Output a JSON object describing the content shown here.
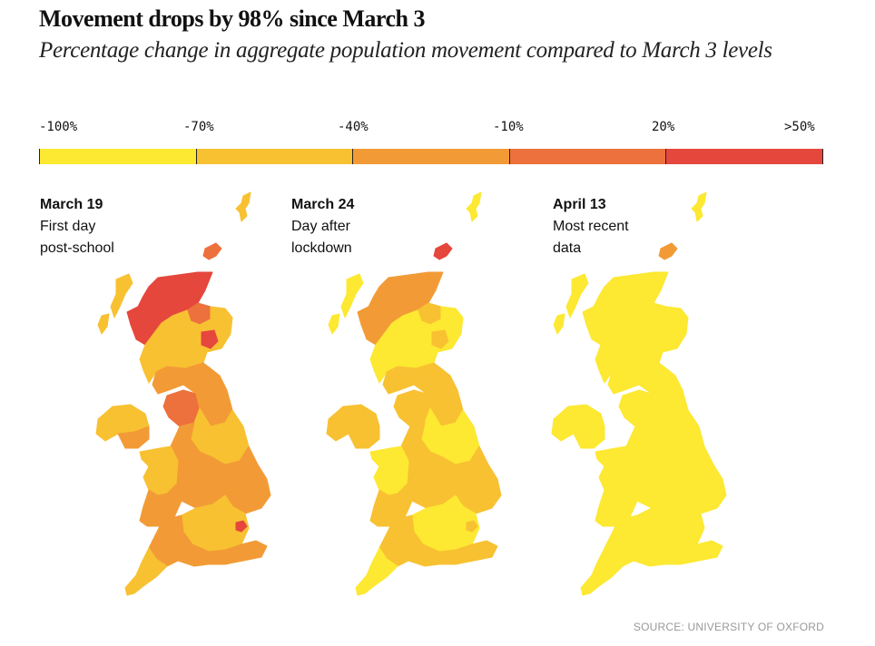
{
  "header": {
    "title": "Movement drops by 98% since March 3",
    "subtitle": "Percentage change in aggregate population movement compared to March 3 levels"
  },
  "legend": {
    "labels": [
      "-100%",
      "-70%",
      "-40%",
      "-10%",
      "20%",
      ">50%"
    ],
    "bins": [
      {
        "range": "-100% to -70%",
        "color": "#fde832"
      },
      {
        "range": "-70% to -40%",
        "color": "#f8c132"
      },
      {
        "range": "-40% to -10%",
        "color": "#f29b36"
      },
      {
        "range": "-10% to 20%",
        "color": "#ec713c"
      },
      {
        "range": "20% to >50%",
        "color": "#e5473d"
      }
    ]
  },
  "panels": [
    {
      "date": "March 19",
      "caption_line1": "First day",
      "caption_line2": "post-school",
      "regions": {
        "shetland": "#f8c132",
        "orkney": "#ec713c",
        "highlands": "#e5473d",
        "hebrides": "#f8c132",
        "ne_scotland": "#f8c132",
        "aberdeen": "#e5473d",
        "moray": "#ec713c",
        "central_scotland": "#f8c132",
        "s_scotland": "#f29b36",
        "n_ireland": "#f8c132",
        "n_ireland_south": "#f29b36",
        "n_england": "#f29b36",
        "cumbria": "#ec713c",
        "yorkshire": "#f8c132",
        "midlands": "#f29b36",
        "wales": "#f8c132",
        "s_wales": "#f29b36",
        "east_anglia": "#f29b36",
        "home_counties": "#f8c132",
        "london": "#e5473d",
        "sw_england": "#f29b36",
        "cornwall": "#f8c132",
        "south_coast": "#f29b36"
      }
    },
    {
      "date": "March 24",
      "caption_line1": "Day after",
      "caption_line2": "lockdown",
      "regions": {
        "shetland": "#fde832",
        "orkney": "#e5473d",
        "highlands": "#f29b36",
        "hebrides": "#fde832",
        "ne_scotland": "#fde832",
        "aberdeen": "#f8c132",
        "moray": "#f8c132",
        "central_scotland": "#fde832",
        "s_scotland": "#f8c132",
        "n_ireland": "#f8c132",
        "n_ireland_south": "#f8c132",
        "n_england": "#f8c132",
        "cumbria": "#f8c132",
        "yorkshire": "#fde832",
        "midlands": "#f8c132",
        "wales": "#fde832",
        "s_wales": "#f8c132",
        "east_anglia": "#f8c132",
        "home_counties": "#fde832",
        "london": "#f8c132",
        "sw_england": "#f8c132",
        "cornwall": "#fde832",
        "south_coast": "#f8c132"
      }
    },
    {
      "date": "April 13",
      "caption_line1": "Most recent",
      "caption_line2": "data",
      "regions": {
        "shetland": "#fde832",
        "orkney": "#f29b36",
        "highlands": "#fde832",
        "hebrides": "#fde832",
        "ne_scotland": "#fde832",
        "aberdeen": "#fde832",
        "moray": "#fde832",
        "central_scotland": "#fde832",
        "s_scotland": "#fde832",
        "n_ireland": "#fde832",
        "n_ireland_south": "#fde832",
        "n_england": "#fde832",
        "cumbria": "#fde832",
        "yorkshire": "#fde832",
        "midlands": "#fde832",
        "wales": "#fde832",
        "s_wales": "#fde832",
        "east_anglia": "#fde832",
        "home_counties": "#fde832",
        "london": "#fde832",
        "sw_england": "#fde832",
        "cornwall": "#fde832",
        "south_coast": "#fde832"
      }
    }
  ],
  "footer": {
    "source": "SOURCE: UNIVERSITY OF OXFORD"
  }
}
